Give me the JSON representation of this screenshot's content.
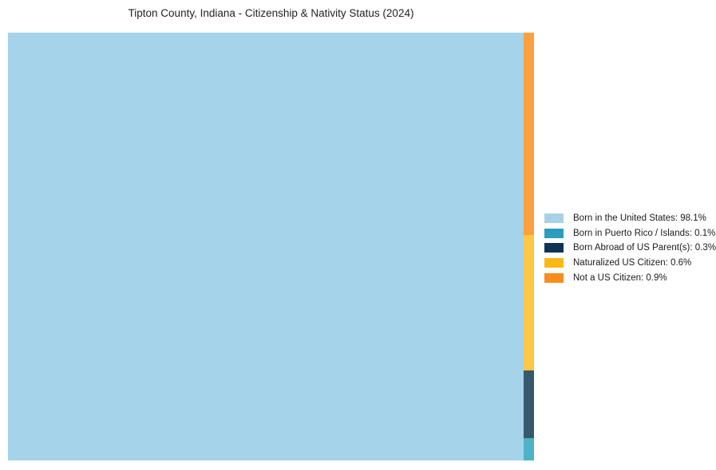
{
  "title": "Tipton County, Indiana - Citizenship & Nativity Status (2024)",
  "chart_data": {
    "type": "treemap",
    "title": "Tipton County, Indiana - Citizenship & Nativity Status (2024)",
    "unit": "%",
    "categories": [
      "Born in the United States",
      "Born in Puerto Rico / Islands",
      "Born Abroad of US Parent(s)",
      "Naturalized US Citizen",
      "Not a US Citizen"
    ],
    "values": [
      98.1,
      0.1,
      0.3,
      0.6,
      0.9
    ],
    "layout": {
      "main_tile_index": 0,
      "strip_order_top_to_bottom": [
        4,
        3,
        2,
        1
      ],
      "legend_position": "right"
    },
    "legend_colors": [
      "#a8d2e8",
      "#2b9dbd",
      "#0e3453",
      "#fdb817",
      "#f78d1e"
    ],
    "tile_colors": [
      "#a4d3ea",
      "#4db3c6",
      "#37596b",
      "#fdc844",
      "#faa03d"
    ]
  },
  "legend": {
    "items": [
      {
        "label": "Born in the United States: 98.1%",
        "color": "#a8d2e8"
      },
      {
        "label": "Born in Puerto Rico / Islands: 0.1%",
        "color": "#2b9dbd"
      },
      {
        "label": "Born Abroad of US Parent(s): 0.3%",
        "color": "#0e3453"
      },
      {
        "label": "Naturalized US Citizen: 0.6%",
        "color": "#fdb817"
      },
      {
        "label": "Not a US Citizen: 0.9%",
        "color": "#f78d1e"
      }
    ]
  }
}
